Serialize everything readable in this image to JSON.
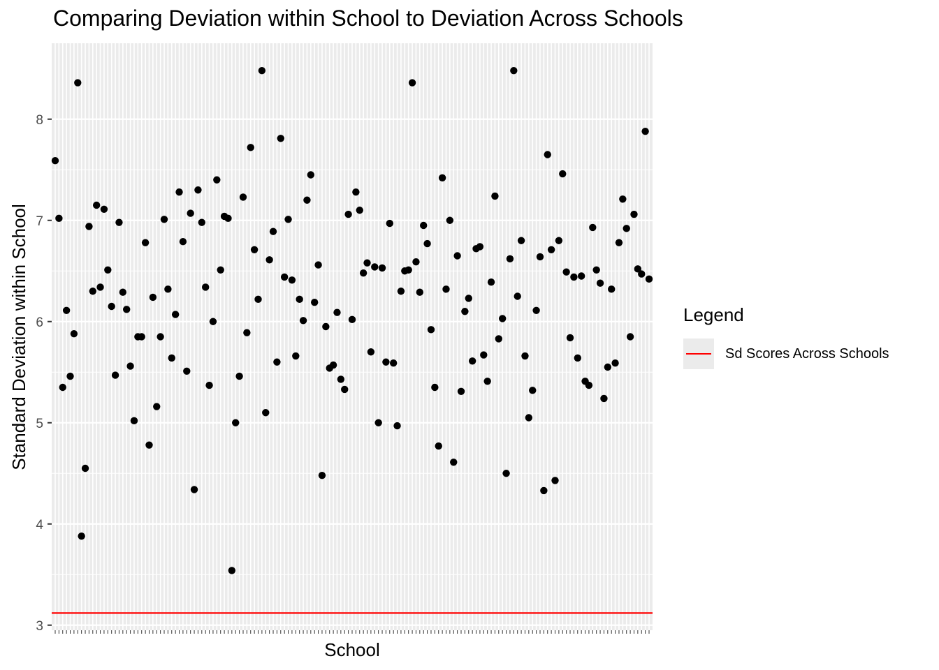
{
  "chart_data": {
    "type": "scatter",
    "title": "Comparing Deviation within School to Deviation Across Schools",
    "xlabel": "School",
    "ylabel": "Standard Deviation within School",
    "ylim": [
      2.95,
      8.75
    ],
    "yticks": [
      3,
      4,
      5,
      6,
      7,
      8
    ],
    "x_tick_labels_shown": false,
    "grid": true,
    "panel_background": "#ebebeb",
    "point_color": "#000000",
    "y": [
      7.59,
      7.02,
      5.35,
      6.11,
      5.46,
      5.88,
      8.36,
      3.88,
      4.55,
      6.94,
      6.3,
      7.15,
      6.34,
      7.11,
      6.51,
      6.15,
      5.47,
      6.98,
      6.29,
      6.12,
      5.56,
      5.02,
      5.85,
      5.85,
      6.78,
      4.78,
      6.24,
      5.16,
      5.85,
      7.01,
      6.32,
      5.64,
      6.07,
      7.28,
      6.79,
      5.51,
      7.07,
      4.34,
      7.3,
      6.98,
      6.34,
      5.37,
      6.0,
      7.4,
      6.51,
      7.04,
      7.02,
      3.54,
      5.0,
      5.46,
      7.23,
      5.89,
      7.72,
      6.71,
      6.22,
      8.48,
      5.1,
      6.61,
      6.89,
      5.6,
      7.81,
      6.44,
      7.01,
      6.41,
      5.66,
      6.22,
      6.01,
      7.2,
      7.45,
      6.19,
      6.56,
      4.48,
      5.95,
      5.54,
      5.57,
      6.09,
      5.43,
      5.33,
      7.06,
      6.02,
      7.28,
      7.1,
      6.48,
      6.58,
      5.7,
      6.54,
      5.0,
      6.53,
      5.6,
      6.97,
      5.59,
      4.97,
      6.3,
      6.5,
      6.51,
      8.36,
      6.59,
      6.29,
      6.95,
      6.77,
      5.92,
      5.35,
      4.77,
      7.42,
      6.32,
      7.0,
      4.61,
      6.65,
      5.31,
      6.1,
      6.23,
      5.61,
      6.72,
      6.74,
      5.67,
      5.41,
      6.39,
      7.24,
      5.83,
      6.03,
      4.5,
      6.62,
      8.48,
      6.25,
      6.8,
      5.66,
      5.05,
      5.32,
      6.11,
      6.64,
      4.33,
      7.65,
      6.71,
      4.43,
      6.8,
      7.46,
      6.49,
      5.84,
      6.44,
      5.64,
      6.45,
      5.41,
      5.37,
      6.93,
      6.51,
      6.38,
      5.24,
      5.55,
      6.32,
      5.59,
      6.78,
      7.21,
      6.92,
      5.85,
      7.06,
      6.52,
      6.47,
      7.88,
      6.42
    ],
    "series": [
      {
        "name": "Sd Scores Across Schools",
        "type": "hline",
        "y": 3.12,
        "color": "#ff0000"
      }
    ],
    "legend": {
      "title": "Legend",
      "placement": "right"
    }
  }
}
